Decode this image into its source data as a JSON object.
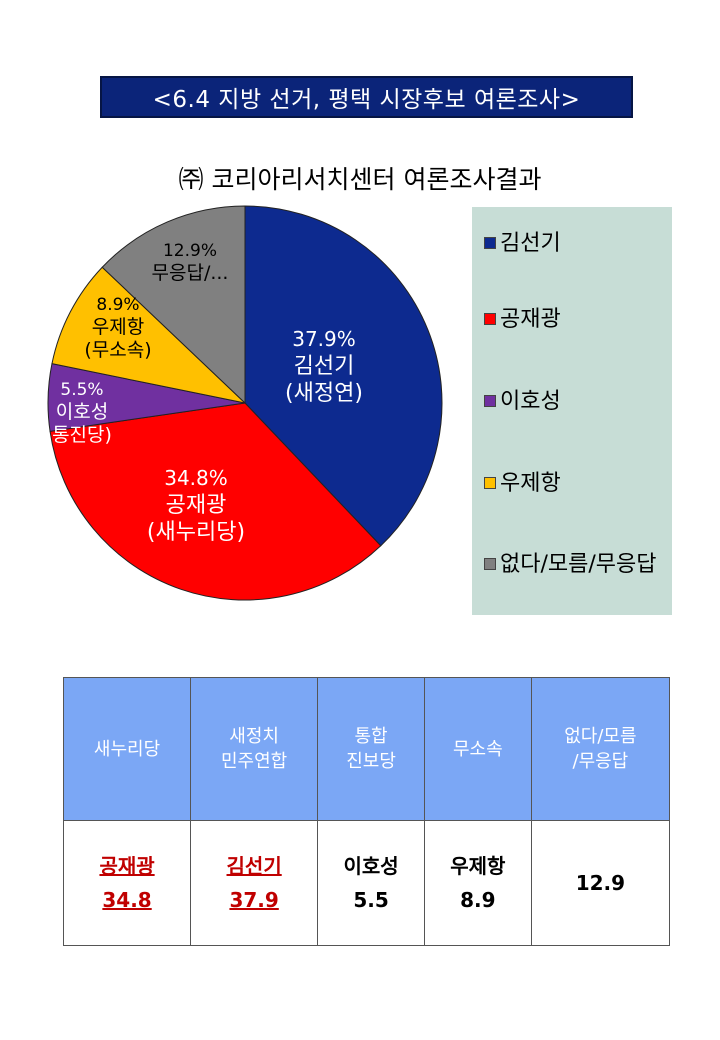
{
  "banner": {
    "title": "<6.4 지방 선거, 평택 시장후보 여론조사>"
  },
  "chart_data": {
    "type": "pie",
    "title": "㈜ 코리아리서치센터 여론조사결과",
    "slices": [
      {
        "label": "김선기",
        "value": 37.9,
        "value_text": "37.9%",
        "name_line": "김선기",
        "party_line": "(새정연)",
        "color": "#0d2a8f",
        "text_color": "#ffffff"
      },
      {
        "label": "공재광",
        "value": 34.8,
        "value_text": "34.8%",
        "name_line": "공재광",
        "party_line": "(새누리당)",
        "color": "#ff0000",
        "text_color": "#ffffff"
      },
      {
        "label": "이호성",
        "value": 5.5,
        "value_text": "5.5%",
        "name_line": "이호성",
        "party_line": "통진당)",
        "color": "#7030a0",
        "text_color": "#ffffff"
      },
      {
        "label": "우제항",
        "value": 8.9,
        "value_text": "8.9%",
        "name_line": "우제항",
        "party_line": "(무소속)",
        "color": "#ffc000",
        "text_color": "#000000"
      },
      {
        "label": "없다/모름/무응답",
        "value": 12.9,
        "value_text": "12.9%",
        "name_line": "무응답/...",
        "party_line": "",
        "color": "#808080",
        "text_color": "#000000"
      }
    ],
    "legend": {
      "position": "right",
      "items": [
        {
          "label": "김선기",
          "color": "#0d2a8f"
        },
        {
          "label": "공재광",
          "color": "#ff0000"
        },
        {
          "label": "이호성",
          "color": "#7030a0"
        },
        {
          "label": "우제항",
          "color": "#ffc000"
        },
        {
          "label": "없다/모름/무응답",
          "color": "#808080"
        }
      ]
    }
  },
  "table": {
    "headers": [
      [
        "새누리당"
      ],
      [
        "새정치",
        "민주연합"
      ],
      [
        "통합",
        "진보당"
      ],
      [
        "무소속"
      ],
      [
        "없다/모름",
        "/무응답"
      ]
    ],
    "cells": [
      {
        "name": "공재광",
        "value": "34.8",
        "highlight": true
      },
      {
        "name": "김선기",
        "value": "37.9",
        "highlight": true
      },
      {
        "name": "이호성",
        "value": "5.5",
        "highlight": false
      },
      {
        "name": "우제항",
        "value": "8.9",
        "highlight": false
      },
      {
        "name": "",
        "value": "12.9",
        "highlight": false
      }
    ]
  }
}
